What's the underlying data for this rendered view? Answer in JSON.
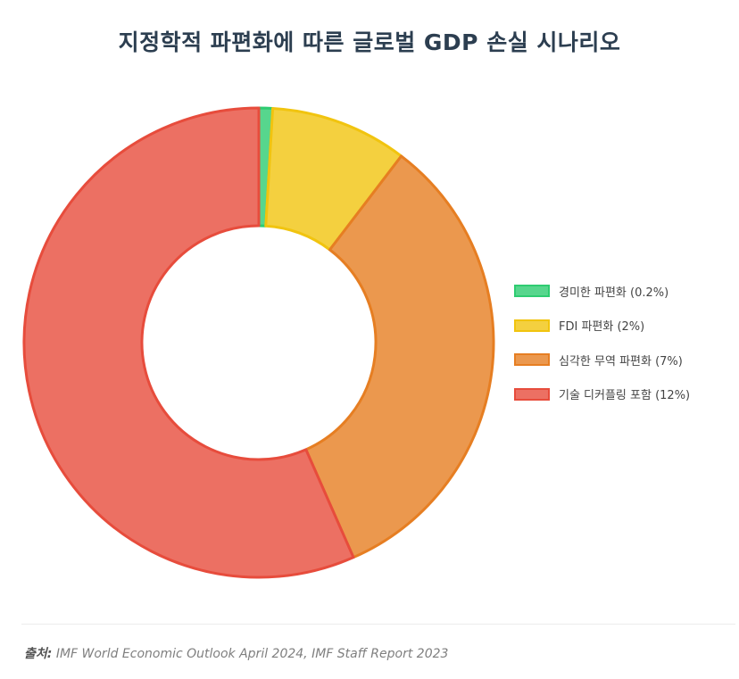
{
  "chart_data": {
    "type": "pie",
    "title": "지정학적 파편화에 따른 글로벌 GDP 손실 시나리오",
    "categories": [
      "경미한 파편화 (0.2%)",
      "FDI 파편화 (2%)",
      "심각한 무역 파편화 (7%)",
      "기술 디커플링 포함 (12%)"
    ],
    "values": [
      0.2,
      2,
      7,
      12
    ],
    "donut": true,
    "legend_position": "right",
    "colors": {
      "fill": [
        "#57d68d",
        "#f4d03f",
        "#eb984e",
        "#ec7063"
      ],
      "stroke": [
        "#2ecc71",
        "#f1c40f",
        "#e67e22",
        "#e74c3c"
      ]
    }
  },
  "source": {
    "label": "출처:",
    "text": "IMF World Economic Outlook April 2024, IMF Staff Report 2023"
  }
}
